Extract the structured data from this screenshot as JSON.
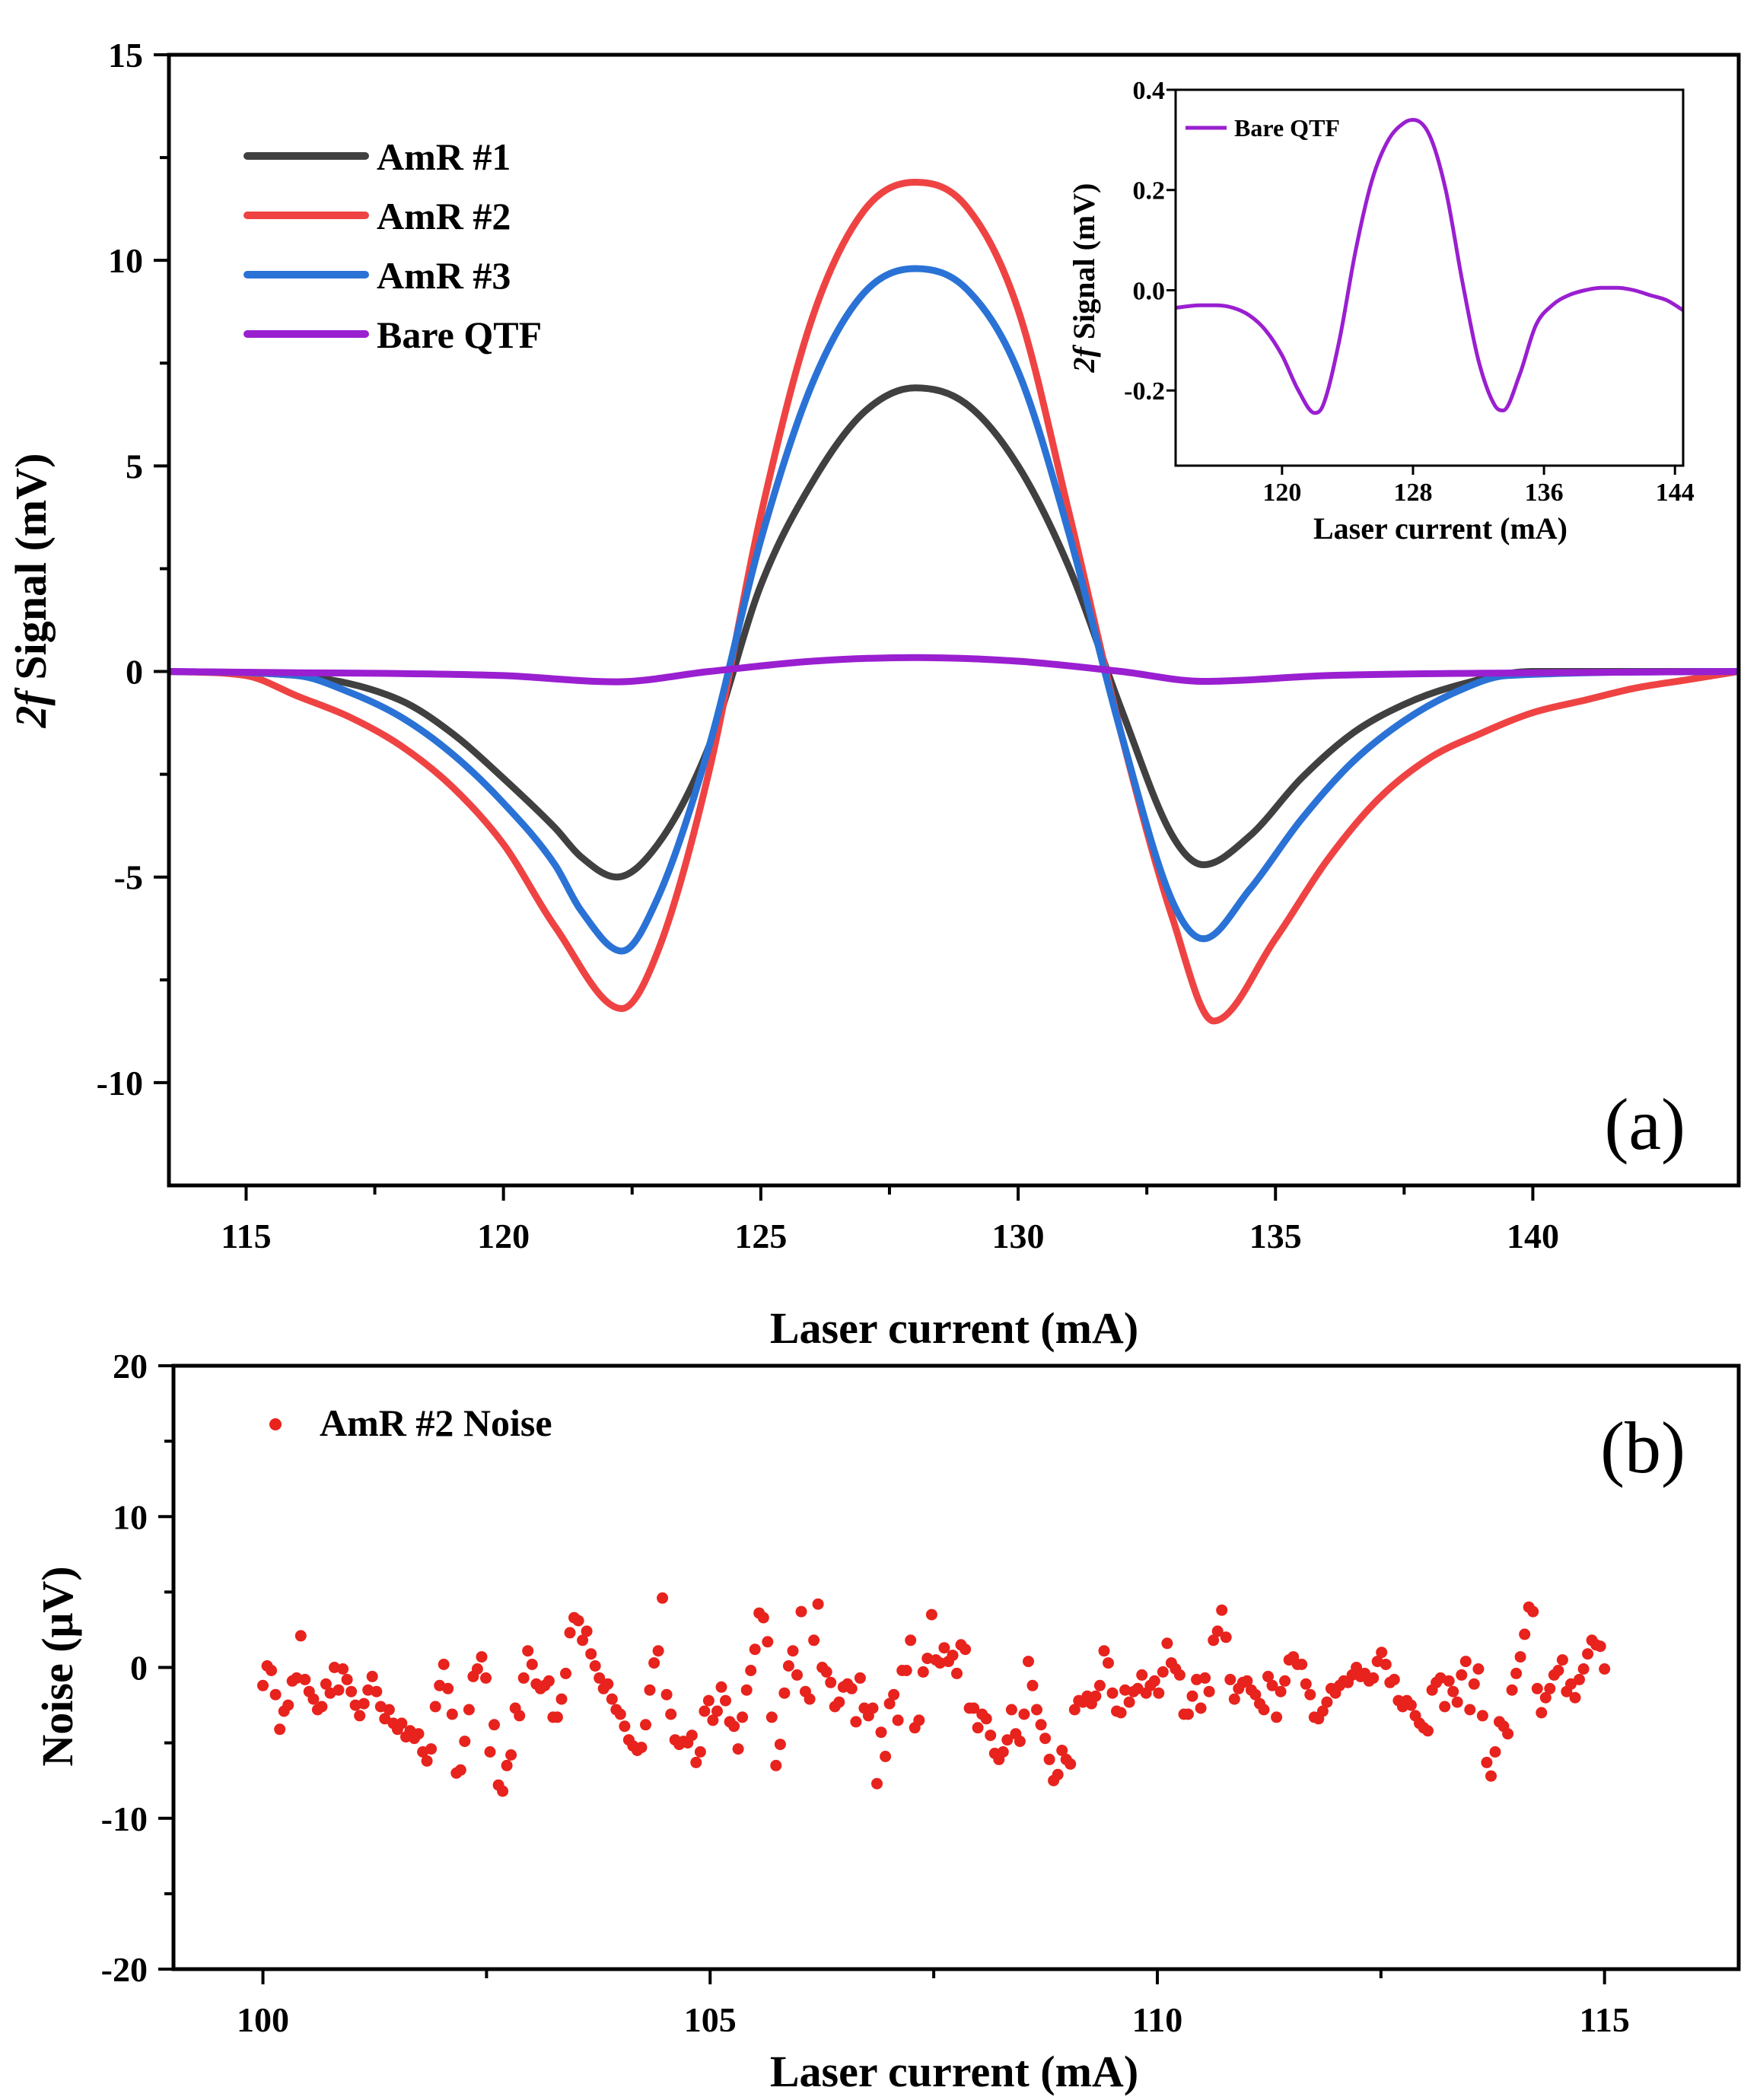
{
  "chart_data": [
    {
      "id": "a",
      "type": "line",
      "panel_label": "(a)",
      "xlabel": "Laser current (mA)",
      "ylabel_italic": "2f",
      "ylabel_rest": " Signal (mV)",
      "xlim": [
        113.5,
        144
      ],
      "ylim": [
        -12.5,
        15
      ],
      "xticks": [
        115,
        120,
        125,
        130,
        135,
        140
      ],
      "yticks": [
        -10,
        -5,
        0,
        5,
        10,
        15
      ],
      "legend_position": "top-left",
      "series": [
        {
          "name": "AmR #1",
          "color": "#404040",
          "peaks": [
            {
              "x": 128.0,
              "y": 6.9
            },
            {
              "x": 122.2,
              "y": -5.0
            },
            {
              "x": 133.6,
              "y": -4.7
            }
          ],
          "x": [
            113.5,
            116,
            118,
            119,
            120,
            121,
            121.5,
            122.2,
            123,
            124,
            125,
            126,
            127,
            128,
            129,
            130,
            131,
            132,
            133,
            133.6,
            134.5,
            135.5,
            136.5,
            137.5,
            138.5,
            140,
            144
          ],
          "y": [
            0,
            -0.1,
            -0.7,
            -1.5,
            -2.6,
            -3.8,
            -4.5,
            -5.0,
            -4.2,
            -1.8,
            2.1,
            4.6,
            6.3,
            6.9,
            6.5,
            5.0,
            2.5,
            -0.9,
            -4.0,
            -4.7,
            -4.0,
            -2.6,
            -1.5,
            -0.8,
            -0.35,
            0,
            0
          ]
        },
        {
          "name": "AmR #2",
          "color": "#ef4343",
          "peaks": [
            {
              "x": 128.0,
              "y": 11.9
            },
            {
              "x": 122.3,
              "y": -8.2
            },
            {
              "x": 133.8,
              "y": -8.5
            }
          ],
          "x": [
            113.5,
            115,
            116,
            117,
            118,
            119,
            120,
            121,
            122.3,
            123,
            124,
            125,
            126,
            127,
            128,
            129,
            130,
            131,
            132,
            133,
            133.8,
            135,
            136,
            137,
            138,
            139,
            140,
            141,
            142,
            143,
            144
          ],
          "y": [
            0,
            -0.1,
            -0.6,
            -1.1,
            -1.8,
            -2.8,
            -4.2,
            -6.2,
            -8.2,
            -6.8,
            -2.4,
            3.8,
            8.6,
            11.2,
            11.9,
            11.3,
            8.8,
            3.8,
            -1.5,
            -6.0,
            -8.5,
            -6.5,
            -4.6,
            -3.1,
            -2.1,
            -1.5,
            -1.0,
            -0.7,
            -0.4,
            -0.2,
            0
          ]
        },
        {
          "name": "AmR #3",
          "color": "#2a72d5",
          "peaks": [
            {
              "x": 128.0,
              "y": 9.8
            },
            {
              "x": 122.3,
              "y": -6.8
            },
            {
              "x": 133.6,
              "y": -6.5
            }
          ],
          "x": [
            113.5,
            116,
            117,
            118,
            119,
            120,
            121,
            121.5,
            122.3,
            123,
            124,
            125,
            126,
            127,
            128,
            129,
            130,
            131,
            132,
            133,
            133.6,
            134.5,
            135.5,
            136.5,
            137.5,
            138.5,
            139.5,
            144
          ],
          "y": [
            0,
            -0.1,
            -0.5,
            -1.1,
            -2.0,
            -3.2,
            -4.7,
            -5.8,
            -6.8,
            -5.5,
            -1.8,
            3.2,
            7.0,
            9.2,
            9.8,
            9.3,
            7.3,
            3.3,
            -1.5,
            -5.6,
            -6.5,
            -5.3,
            -3.6,
            -2.2,
            -1.2,
            -0.5,
            -0.1,
            0
          ]
        },
        {
          "name": "Bare QTF",
          "color": "#9a1fd0",
          "peaks": [
            {
              "x": 128.0,
              "y": 0.34
            },
            {
              "x": 122.2,
              "y": -0.25
            },
            {
              "x": 133.6,
              "y": -0.24
            }
          ],
          "x": [
            113.5,
            116,
            118,
            120,
            122.2,
            124,
            126,
            128,
            130,
            132,
            133.6,
            136,
            140,
            144
          ],
          "y": [
            0,
            -0.03,
            -0.05,
            -0.1,
            -0.25,
            0.0,
            0.25,
            0.34,
            0.25,
            0.0,
            -0.24,
            -0.1,
            -0.03,
            0
          ]
        }
      ],
      "inset": {
        "type": "line",
        "xlabel": "Laser current (mA)",
        "ylabel_italic": "2f",
        "ylabel_rest": " Signal (mV)",
        "xlim": [
          113.5,
          144.5
        ],
        "ylim": [
          -0.35,
          0.4
        ],
        "xticks": [
          120,
          128,
          136,
          144
        ],
        "yticks": [
          -0.2,
          0.0,
          0.2,
          0.4
        ],
        "ytick_labels": [
          "-0.2",
          "0.0",
          "0.2",
          "0.4"
        ],
        "series": [
          {
            "name": "Bare QTF",
            "color": "#9a1fd0",
            "x": [
              113.5,
              115,
              116,
              117,
              118,
              119,
              120,
              121,
              122,
              122.5,
              123.5,
              124.5,
              125.5,
              126.5,
              127.5,
              128,
              129,
              130,
              131,
              132,
              133,
              133.5,
              134.5,
              135.5,
              136.5,
              137.5,
              138.5,
              139.5,
              140.5,
              141.5,
              142.5,
              143.5,
              144.5
            ],
            "y": [
              -0.035,
              -0.03,
              -0.03,
              -0.035,
              -0.05,
              -0.08,
              -0.13,
              -0.2,
              -0.245,
              -0.23,
              -0.1,
              0.08,
              0.22,
              0.3,
              0.335,
              0.34,
              0.31,
              0.2,
              0.02,
              -0.14,
              -0.23,
              -0.24,
              -0.17,
              -0.07,
              -0.03,
              -0.01,
              0.0,
              0.005,
              0.005,
              0.0,
              -0.01,
              -0.02,
              -0.04
            ]
          }
        ]
      }
    },
    {
      "id": "b",
      "type": "scatter",
      "panel_label": "(b)",
      "xlabel": "Laser current (mA)",
      "ylabel": "Noise (μV)",
      "xlim": [
        99,
        116.5
      ],
      "ylim": [
        -20,
        20
      ],
      "xticks": [
        100,
        105,
        110,
        115
      ],
      "yticks": [
        -20,
        -10,
        0,
        10,
        20
      ],
      "legend_position": "top-left",
      "series": [
        {
          "name": "AmR #2 Noise",
          "color": "#e8221d",
          "x_start": 100,
          "x_end": 115,
          "y": [
            -1.2,
            0.1,
            -0.2,
            -1.8,
            -4.1,
            -2.9,
            -2.5,
            -0.9,
            -0.7,
            2.1,
            -0.8,
            -1.6,
            -2.1,
            -2.8,
            -2.6,
            -1.1,
            -1.7,
            0.0,
            -1.5,
            -0.1,
            -0.8,
            -1.6,
            -2.5,
            -3.2,
            -2.4,
            -1.5,
            -0.6,
            -1.6,
            -2.6,
            -3.4,
            -2.8,
            -3.7,
            -4.1,
            -3.7,
            -4.6,
            -4.2,
            -4.7,
            -4.4,
            -5.6,
            -6.2,
            -5.4,
            -2.6,
            -1.2,
            0.2,
            -1.4,
            -3.1,
            -7.0,
            -6.8,
            -4.9,
            -2.8,
            -0.6,
            -0.1,
            0.7,
            -0.7,
            -5.6,
            -3.8,
            -7.8,
            -8.2,
            -6.5,
            -5.8,
            -2.7,
            -3.2,
            -0.7,
            1.1,
            0.2,
            -1.1,
            -1.4,
            -1.2,
            -0.9,
            -3.3,
            -3.3,
            -2.1,
            -0.4,
            2.3,
            3.3,
            3.1,
            1.8,
            2.4,
            0.9,
            0.1,
            -0.7,
            -1.4,
            -1.1,
            -2.1,
            -2.8,
            -3.1,
            -3.9,
            -4.8,
            -5.2,
            -5.5,
            -5.3,
            -3.8,
            -1.5,
            0.3,
            1.1,
            4.6,
            -1.8,
            -3.1,
            -4.8,
            -5.1,
            -4.9,
            -5.0,
            -4.5,
            -6.3,
            -5.6,
            -2.9,
            -2.2,
            -3.5,
            -2.9,
            -1.3,
            -2.2,
            -3.6,
            -3.9,
            -5.4,
            -3.3,
            -1.5,
            -0.2,
            1.2,
            3.6,
            3.3,
            1.7,
            -3.3,
            -6.5,
            -5.1,
            -1.7,
            0.1,
            1.1,
            -0.5,
            3.7,
            -1.6,
            -2.1,
            1.8,
            4.2,
            0.0,
            -0.3,
            -1.0,
            -2.6,
            -2.3,
            -1.3,
            -1.1,
            -1.4,
            -3.6,
            -0.7,
            -2.7,
            -3.2,
            -2.7,
            -7.7,
            -4.3,
            -5.9,
            -2.4,
            -1.8,
            -3.5,
            -0.2,
            -0.2,
            1.8,
            -4.0,
            -3.5,
            -0.3,
            0.6,
            3.5,
            0.5,
            0.3,
            1.3,
            0.4,
            0.8,
            -0.4,
            1.5,
            1.2,
            -2.7,
            -2.7,
            -4.0,
            -3.1,
            -3.4,
            -4.5,
            -5.7,
            -6.1,
            -5.6,
            -4.8,
            -2.8,
            -4.4,
            -4.9,
            -3.1,
            0.4,
            -1.2,
            -2.8,
            -3.8,
            -4.7,
            -6.1,
            -7.5,
            -7.1,
            -5.5,
            -6.1,
            -6.4,
            -2.8,
            -2.2,
            -2.3,
            -1.9,
            -2.4,
            -1.9,
            -1.2,
            1.1,
            0.3,
            -1.7,
            -2.9,
            -3.0,
            -1.5,
            -2.3,
            -1.6,
            -1.4,
            -0.5,
            -1.7,
            -1.2,
            -0.9,
            -1.7,
            -0.3,
            1.6,
            0.3,
            -0.1,
            -0.5,
            -3.1,
            -3.1,
            -1.9,
            -0.8,
            -2.7,
            -0.7,
            -1.6,
            1.8,
            2.4,
            3.8,
            2.0,
            -0.8,
            -2.1,
            -1.4,
            -1.0,
            -0.9,
            -1.5,
            -1.8,
            -2.4,
            -2.8,
            -0.6,
            -1.2,
            -3.3,
            -1.6,
            -0.9,
            0.5,
            0.7,
            0.2,
            0.2,
            -1.1,
            -1.8,
            -3.3,
            -3.4,
            -2.9,
            -2.3,
            -1.4,
            -1.7,
            -1.2,
            -0.9,
            -1.0,
            -0.5,
            0.0,
            -0.6,
            -0.4,
            -0.9,
            -0.7,
            0.4,
            1.0,
            0.2,
            -1.0,
            -0.8,
            -2.2,
            -2.6,
            -2.2,
            -2.5,
            -3.2,
            -3.7,
            -4.0,
            -4.2,
            -1.5,
            -1.0,
            -0.7,
            -2.6,
            -0.9,
            -1.6,
            -2.3,
            -0.5,
            0.4,
            -2.8,
            -1.1,
            -0.1,
            -3.2,
            -6.3,
            -7.2,
            -5.6,
            -3.6,
            -3.9,
            -4.4,
            -1.5,
            -0.4,
            0.7,
            2.2,
            4.0,
            3.7,
            -1.4,
            -3.0,
            -2.0,
            -1.4,
            -0.5,
            -0.2,
            0.5,
            -1.6,
            -1.1,
            -2.0,
            -0.8,
            -0.1,
            0.9,
            1.8,
            1.5,
            1.4,
            -0.1
          ]
        }
      ]
    }
  ]
}
